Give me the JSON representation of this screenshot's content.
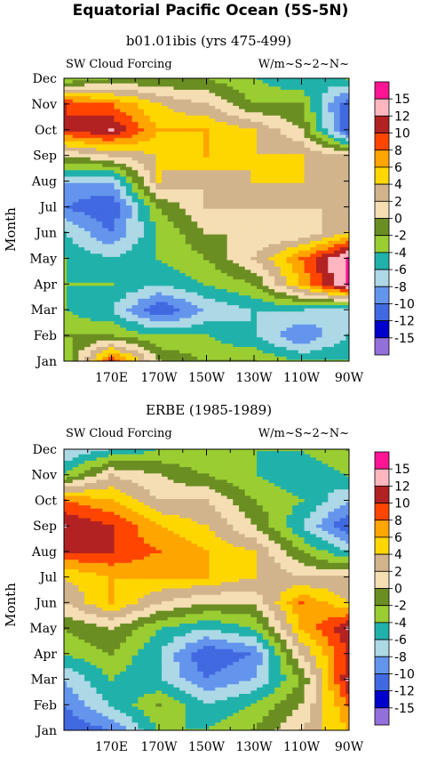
{
  "title": "Equatorial Pacific Ocean (5S-5N)",
  "colorbar": {
    "levels": [
      "15",
      "12",
      "10",
      "8",
      "6",
      "4",
      "2",
      "0",
      "-2",
      "-4",
      "-6",
      "-8",
      "-10",
      "-12",
      "-15"
    ],
    "colors": [
      "#ff1493",
      "#ffb6c1",
      "#b22222",
      "#ff4500",
      "#ffa500",
      "#ffd700",
      "#d2b48c",
      "#f5deb3",
      "#6b8e23",
      "#9acd32",
      "#20b2aa",
      "#add8e6",
      "#6495ed",
      "#4169e1",
      "#0000cd",
      "#9370db"
    ]
  },
  "chart_data": [
    {
      "type": "heatmap",
      "title": "b01.01ibis (yrs 475-499)",
      "left_label": "SW Cloud Forcing",
      "right_label": "W/m~S~2~N~",
      "ylabel": "Month",
      "x_ticks": [
        "170E",
        "170W",
        "150W",
        "130W",
        "110W",
        "90W"
      ],
      "y_ticks": [
        "Jan",
        "Feb",
        "Mar",
        "Apr",
        "May",
        "Jun",
        "Jul",
        "Aug",
        "Sep",
        "Oct",
        "Nov",
        "Dec"
      ],
      "x_longitudes": [
        150,
        170,
        190,
        210,
        230,
        250,
        270
      ],
      "rows_jan_to_dec": [
        [
          -4,
          10,
          0,
          -2,
          -2,
          -4,
          -4
        ],
        [
          -2,
          -2,
          -4,
          -4,
          -6,
          -10,
          -6
        ],
        [
          -4,
          -6,
          -12,
          -8,
          -6,
          -6,
          -8
        ],
        [
          -4,
          -4,
          -6,
          -4,
          -2,
          6,
          15
        ],
        [
          -4,
          -6,
          -4,
          -2,
          2,
          8,
          15
        ],
        [
          -6,
          -10,
          -4,
          0,
          0,
          0,
          4
        ],
        [
          -10,
          -12,
          -2,
          2,
          2,
          2,
          2
        ],
        [
          -8,
          -8,
          4,
          2,
          4,
          4,
          2
        ],
        [
          0,
          2,
          4,
          6,
          4,
          4,
          2
        ],
        [
          10,
          12,
          6,
          6,
          4,
          0,
          -12
        ],
        [
          10,
          8,
          4,
          2,
          -2,
          -2,
          -12
        ],
        [
          -4,
          -2,
          -2,
          -2,
          -4,
          -6,
          -4
        ]
      ]
    },
    {
      "type": "heatmap",
      "title": "ERBE (1985-1989)",
      "left_label": "SW Cloud Forcing",
      "right_label": "W/m~S~2~N~",
      "ylabel": "Month",
      "x_ticks": [
        "170E",
        "170W",
        "150W",
        "130W",
        "110W",
        "90W"
      ],
      "y_ticks": [
        "Jan",
        "Feb",
        "Mar",
        "Apr",
        "May",
        "Jun",
        "Jul",
        "Aug",
        "Sep",
        "Oct",
        "Nov",
        "Dec"
      ],
      "x_longitudes": [
        150,
        170,
        190,
        210,
        230,
        250,
        270
      ],
      "rows_jan_to_dec": [
        [
          -12,
          -10,
          -4,
          -4,
          -2,
          2,
          6
        ],
        [
          -10,
          -6,
          -2,
          -6,
          -4,
          0,
          8
        ],
        [
          -8,
          -4,
          -6,
          -10,
          -8,
          -2,
          12
        ],
        [
          -4,
          -2,
          -6,
          -12,
          -10,
          2,
          10
        ],
        [
          -2,
          0,
          -4,
          -6,
          -4,
          6,
          12
        ],
        [
          2,
          6,
          2,
          0,
          0,
          8,
          4
        ],
        [
          4,
          6,
          6,
          6,
          4,
          2,
          2
        ],
        [
          10,
          10,
          8,
          6,
          4,
          -2,
          -6
        ],
        [
          12,
          10,
          6,
          4,
          0,
          -6,
          -12
        ],
        [
          8,
          6,
          2,
          2,
          -2,
          -4,
          -8
        ],
        [
          -4,
          2,
          0,
          -2,
          -4,
          -6,
          -4
        ],
        [
          -8,
          -6,
          -4,
          -4,
          -4,
          -4,
          -2
        ]
      ]
    }
  ]
}
